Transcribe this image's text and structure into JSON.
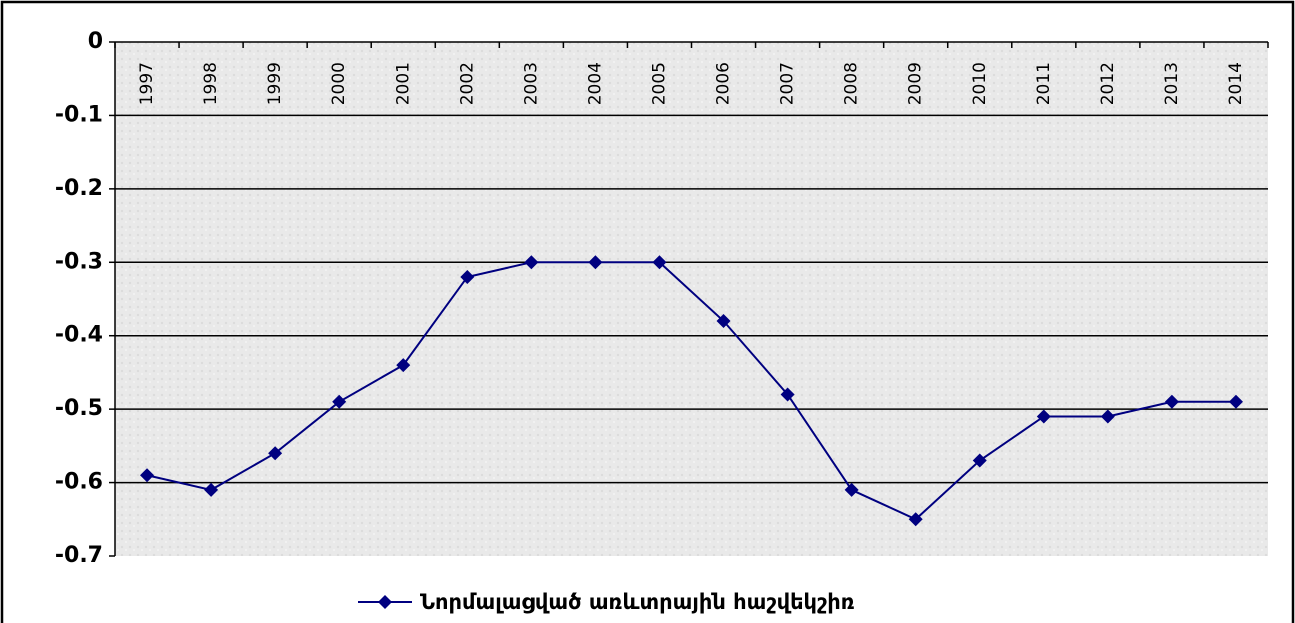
{
  "chart_data": {
    "type": "line",
    "categories": [
      "1997",
      "1998",
      "1999",
      "2000",
      "2001",
      "2002",
      "2003",
      "2004",
      "2005",
      "2006",
      "2007",
      "2008",
      "2009",
      "2010",
      "2011",
      "2012",
      "2013",
      "2014"
    ],
    "series": [
      {
        "name": "Նորմալացված առևտրային հաշվեկշիռ",
        "color": "#000080",
        "values": [
          -0.59,
          -0.61,
          -0.56,
          -0.49,
          -0.44,
          -0.32,
          -0.3,
          -0.3,
          -0.3,
          -0.38,
          -0.48,
          -0.61,
          -0.65,
          -0.57,
          -0.51,
          -0.51,
          -0.49,
          -0.49
        ]
      }
    ],
    "ylim": [
      -0.7,
      0
    ],
    "yticks": [
      0,
      -0.1,
      -0.2,
      -0.3,
      -0.4,
      -0.5,
      -0.6,
      -0.7
    ],
    "grid": true,
    "legend": "bottom"
  }
}
